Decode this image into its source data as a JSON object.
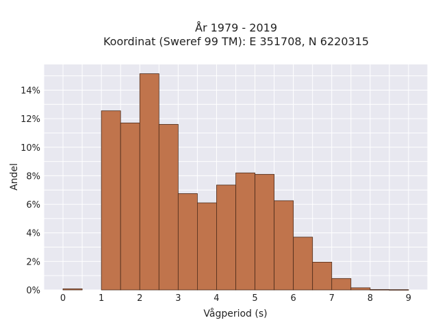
{
  "chart_data": {
    "type": "bar",
    "title_lines": [
      "År 1979 - 2019",
      "Koordinat (Sweref 99 TM): E 351708, N 6220315"
    ],
    "xlabel": "Vågperiod (s)",
    "ylabel": "Andel",
    "x_ticks": [
      "0",
      "1",
      "2",
      "3",
      "4",
      "5",
      "6",
      "7",
      "8",
      "9"
    ],
    "y_ticks": [
      "0%",
      "2%",
      "4%",
      "6%",
      "8%",
      "10%",
      "12%",
      "14%"
    ],
    "xlim": [
      -0.5,
      9.5
    ],
    "ylim": [
      0,
      15.8
    ],
    "grid": true,
    "bar_color": "#c0744c",
    "edge_color": "#4a2a1a",
    "plot_background": "#e8e8f0",
    "bins": [
      {
        "x0": 0.0,
        "x1": 0.5,
        "value": 0.08
      },
      {
        "x0": 0.5,
        "x1": 1.0,
        "value": 0.0
      },
      {
        "x0": 1.0,
        "x1": 1.5,
        "value": 12.55
      },
      {
        "x0": 1.5,
        "x1": 2.0,
        "value": 11.7
      },
      {
        "x0": 2.0,
        "x1": 2.5,
        "value": 15.15
      },
      {
        "x0": 2.5,
        "x1": 3.0,
        "value": 11.6
      },
      {
        "x0": 3.0,
        "x1": 3.5,
        "value": 6.75
      },
      {
        "x0": 3.5,
        "x1": 4.0,
        "value": 6.1
      },
      {
        "x0": 4.0,
        "x1": 4.5,
        "value": 7.35
      },
      {
        "x0": 4.5,
        "x1": 5.0,
        "value": 8.2
      },
      {
        "x0": 5.0,
        "x1": 5.5,
        "value": 8.1
      },
      {
        "x0": 5.5,
        "x1": 6.0,
        "value": 6.25
      },
      {
        "x0": 6.0,
        "x1": 6.5,
        "value": 3.7
      },
      {
        "x0": 6.5,
        "x1": 7.0,
        "value": 1.95
      },
      {
        "x0": 7.0,
        "x1": 7.5,
        "value": 0.8
      },
      {
        "x0": 7.5,
        "x1": 8.0,
        "value": 0.15
      },
      {
        "x0": 8.0,
        "x1": 8.5,
        "value": 0.03
      },
      {
        "x0": 8.5,
        "x1": 9.0,
        "value": 0.02
      }
    ]
  }
}
